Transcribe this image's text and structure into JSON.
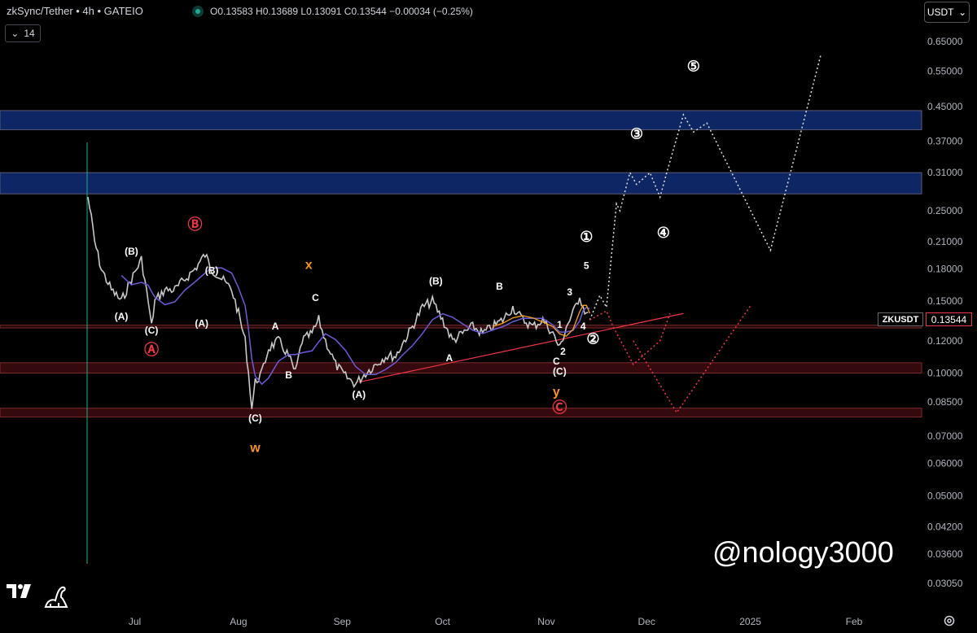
{
  "header": {
    "symbol_title": "zkSync/Tether • 4h • GATEIO",
    "ohlc": "O0.13583  H0.13689  L0.13091  C0.13544  −0.00034 (−0.25%)",
    "interval_toggle_value": "14",
    "currency": "USDT"
  },
  "price_tag": {
    "symbol": "ZKUSDT",
    "price": "0.13544"
  },
  "watermark": "@nology3000",
  "colors": {
    "background": "#000000",
    "candles": "#d1d4dc",
    "ma_purple": "#6b5bd6",
    "ma_orange": "#f7a21b",
    "zone_blue": "#0f2a6e",
    "zone_red": "#3b0b0f",
    "trendline": "#f23645",
    "label_orange": "#f7931a",
    "label_red": "#f23645"
  },
  "chart_data": {
    "type": "line",
    "x_ticks": [
      "Jul",
      "Aug",
      "Sep",
      "Oct",
      "Nov",
      "Dec",
      "2025",
      "Feb"
    ],
    "y_ticks": [
      "0.65000",
      "0.55000",
      "0.45000",
      "0.37000",
      "0.31000",
      "0.25000",
      "0.21000",
      "0.18000",
      "0.15000",
      "0.12000",
      "0.10000",
      "0.08500",
      "0.07000",
      "0.06000",
      "0.05000",
      "0.04200",
      "0.03600",
      "0.03050"
    ],
    "y_scale": "log",
    "ylim": [
      0.029,
      0.7
    ],
    "series": [
      {
        "values": [
          [
            "2024-06-17",
            0.27
          ],
          [
            "2024-06-18",
            0.24
          ],
          [
            "2024-06-19",
            0.21
          ],
          [
            "2024-06-21",
            0.18
          ],
          [
            "2024-06-24",
            0.16
          ],
          [
            "2024-06-27",
            0.15
          ],
          [
            "2024-06-30",
            0.17
          ],
          [
            "2024-07-03",
            0.19
          ],
          [
            "2024-07-05",
            0.15
          ],
          [
            "2024-07-06",
            0.13
          ],
          [
            "2024-07-07",
            0.15
          ],
          [
            "2024-07-10",
            0.16
          ],
          [
            "2024-07-13",
            0.16
          ],
          [
            "2024-07-16",
            0.17
          ],
          [
            "2024-07-19",
            0.18
          ],
          [
            "2024-07-22",
            0.195
          ],
          [
            "2024-07-24",
            0.18
          ],
          [
            "2024-07-27",
            0.17
          ],
          [
            "2024-07-30",
            0.16
          ],
          [
            "2024-08-01",
            0.14
          ],
          [
            "2024-08-03",
            0.12
          ],
          [
            "2024-08-04",
            0.1
          ],
          [
            "2024-08-05",
            0.082
          ],
          [
            "2024-08-06",
            0.095
          ],
          [
            "2024-08-08",
            0.1
          ],
          [
            "2024-08-10",
            0.115
          ],
          [
            "2024-08-13",
            0.12
          ],
          [
            "2024-08-16",
            0.11
          ],
          [
            "2024-08-18",
            0.1
          ],
          [
            "2024-08-20",
            0.12
          ],
          [
            "2024-08-23",
            0.125
          ],
          [
            "2024-08-25",
            0.135
          ],
          [
            "2024-08-27",
            0.12
          ],
          [
            "2024-08-30",
            0.105
          ],
          [
            "2024-09-02",
            0.098
          ],
          [
            "2024-09-05",
            0.094
          ],
          [
            "2024-09-08",
            0.1
          ],
          [
            "2024-09-11",
            0.105
          ],
          [
            "2024-09-14",
            0.11
          ],
          [
            "2024-09-17",
            0.11
          ],
          [
            "2024-09-19",
            0.118
          ],
          [
            "2024-09-22",
            0.13
          ],
          [
            "2024-09-25",
            0.145
          ],
          [
            "2024-09-28",
            0.15
          ],
          [
            "2024-10-01",
            0.135
          ],
          [
            "2024-10-04",
            0.12
          ],
          [
            "2024-10-07",
            0.125
          ],
          [
            "2024-10-10",
            0.13
          ],
          [
            "2024-10-13",
            0.125
          ],
          [
            "2024-10-16",
            0.13
          ],
          [
            "2024-10-19",
            0.135
          ],
          [
            "2024-10-22",
            0.145
          ],
          [
            "2024-10-25",
            0.135
          ],
          [
            "2024-10-28",
            0.13
          ],
          [
            "2024-10-31",
            0.135
          ],
          [
            "2024-11-03",
            0.125
          ],
          [
            "2024-11-05",
            0.115
          ],
          [
            "2024-11-07",
            0.13
          ],
          [
            "2024-11-09",
            0.14
          ],
          [
            "2024-11-11",
            0.155
          ],
          [
            "2024-11-12",
            0.145
          ],
          [
            "2024-11-13",
            0.14
          ],
          [
            "2024-11-14",
            0.13544
          ]
        ]
      }
    ],
    "projections": [
      {
        "values": [
          [
            "2024-11-14",
            0.135
          ],
          [
            "2024-11-17",
            0.155
          ],
          [
            "2024-11-19",
            0.145
          ],
          [
            "2024-11-22",
            0.26
          ],
          [
            "2024-11-23",
            0.25
          ],
          [
            "2024-11-26",
            0.31
          ],
          [
            "2024-11-28",
            0.29
          ],
          [
            "2024-12-02",
            0.31
          ],
          [
            "2024-12-05",
            0.27
          ],
          [
            "2024-12-07",
            0.31
          ],
          [
            "2024-12-12",
            0.43
          ],
          [
            "2024-12-15",
            0.39
          ],
          [
            "2024-12-19",
            0.41
          ],
          [
            "2025-01-07",
            0.2
          ],
          [
            "2025-01-22",
            0.6
          ]
        ]
      },
      {
        "values": [
          [
            "2024-11-14",
            0.135
          ],
          [
            "2024-11-19",
            0.142
          ],
          [
            "2024-11-21",
            0.13
          ],
          [
            "2024-11-27",
            0.105
          ],
          [
            "2024-12-05",
            0.12
          ],
          [
            "2024-12-08",
            0.14
          ]
        ]
      },
      {
        "values": [
          [
            "2024-11-27",
            0.12
          ],
          [
            "2024-12-10",
            0.08
          ],
          [
            "2025-01-01",
            0.146
          ]
        ]
      }
    ],
    "annotations": [
      {
        "text": "(B)",
        "x": "2024-06-30",
        "y": 0.195,
        "color": "#ffffff"
      },
      {
        "text": "(A)",
        "x": "2024-06-27",
        "y": 0.135,
        "color": "#ffffff"
      },
      {
        "text": "(C)",
        "x": "2024-07-06",
        "y": 0.125,
        "color": "#ffffff"
      },
      {
        "text": "Ⓐ",
        "x": "2024-07-06",
        "y": 0.111,
        "color": "#f23645"
      },
      {
        "text": "Ⓑ",
        "x": "2024-07-19",
        "y": 0.225,
        "color": "#f23645"
      },
      {
        "text": "(B)",
        "x": "2024-07-24",
        "y": 0.175,
        "color": "#ffffff"
      },
      {
        "text": "(A)",
        "x": "2024-07-21",
        "y": 0.13,
        "color": "#ffffff"
      },
      {
        "text": "(C)",
        "x": "2024-08-06",
        "y": 0.076,
        "color": "#ffffff"
      },
      {
        "text": "w",
        "x": "2024-08-06",
        "y": 0.064,
        "color": "#f7931a"
      },
      {
        "text": "A",
        "x": "2024-08-12",
        "y": 0.128,
        "color": "#ffffff"
      },
      {
        "text": "B",
        "x": "2024-08-16",
        "y": 0.097,
        "color": "#ffffff"
      },
      {
        "text": "C",
        "x": "2024-08-24",
        "y": 0.15,
        "color": "#ffffff"
      },
      {
        "text": "x",
        "x": "2024-08-22",
        "y": 0.18,
        "color": "#f7931a"
      },
      {
        "text": "(A)",
        "x": "2024-09-06",
        "y": 0.087,
        "color": "#ffffff"
      },
      {
        "text": "(B)",
        "x": "2024-09-29",
        "y": 0.165,
        "color": "#ffffff"
      },
      {
        "text": "A",
        "x": "2024-10-03",
        "y": 0.107,
        "color": "#ffffff"
      },
      {
        "text": "B",
        "x": "2024-10-18",
        "y": 0.16,
        "color": "#ffffff"
      },
      {
        "text": "1",
        "x": "2024-11-05",
        "y": 0.129,
        "color": "#ffffff"
      },
      {
        "text": "2",
        "x": "2024-11-06",
        "y": 0.111,
        "color": "#ffffff"
      },
      {
        "text": "3",
        "x": "2024-11-08",
        "y": 0.155,
        "color": "#ffffff"
      },
      {
        "text": "4",
        "x": "2024-11-12",
        "y": 0.128,
        "color": "#ffffff"
      },
      {
        "text": "5",
        "x": "2024-11-13",
        "y": 0.18,
        "color": "#ffffff"
      },
      {
        "text": "①",
        "x": "2024-11-13",
        "y": 0.21,
        "color": "#ffffff"
      },
      {
        "text": "②",
        "x": "2024-11-15",
        "y": 0.118,
        "color": "#ffffff"
      },
      {
        "text": "C",
        "x": "2024-11-04",
        "y": 0.105,
        "color": "#ffffff"
      },
      {
        "text": "(C)",
        "x": "2024-11-05",
        "y": 0.099,
        "color": "#ffffff"
      },
      {
        "text": "y",
        "x": "2024-11-04",
        "y": 0.088,
        "color": "#f7931a"
      },
      {
        "text": "Ⓒ",
        "x": "2024-11-05",
        "y": 0.08,
        "color": "#f23645"
      },
      {
        "text": "③",
        "x": "2024-11-28",
        "y": 0.375,
        "color": "#ffffff"
      },
      {
        "text": "④",
        "x": "2024-12-06",
        "y": 0.215,
        "color": "#ffffff"
      },
      {
        "text": "⑤",
        "x": "2024-12-15",
        "y": 0.55,
        "color": "#ffffff"
      }
    ],
    "zones": [
      {
        "from": 0.395,
        "to": 0.44,
        "color": "#0f2a6e"
      },
      {
        "from": 0.275,
        "to": 0.31,
        "color": "#0f2a6e"
      },
      {
        "from": 0.129,
        "to": 0.131,
        "color": "#f23645"
      },
      {
        "from": 0.1,
        "to": 0.106,
        "color": "#3b0b0f"
      },
      {
        "from": 0.078,
        "to": 0.082,
        "color": "#3b0b0f"
      }
    ],
    "trendline": {
      "from": [
        "2024-09-06",
        0.095
      ],
      "to": [
        "2024-12-12",
        0.14
      ]
    },
    "grid": false,
    "legend": "none"
  }
}
